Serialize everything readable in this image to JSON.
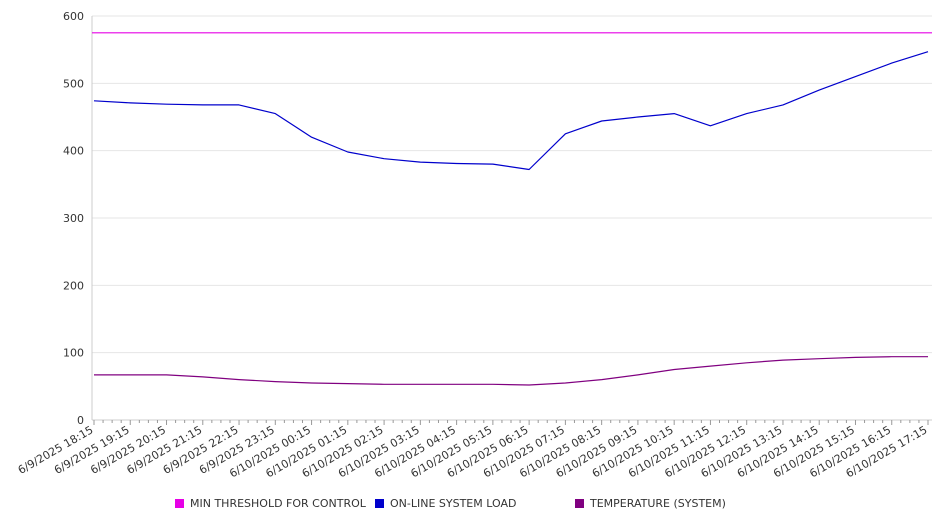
{
  "chart_data": {
    "type": "line",
    "title": "",
    "xlabel": "",
    "ylabel": "",
    "ylim": [
      0,
      600
    ],
    "yticks": [
      0,
      100,
      200,
      300,
      400,
      500,
      600
    ],
    "grid": "horizontal",
    "legend_position": "bottom",
    "x": [
      "6/9/2025 18:15",
      "6/9/2025 19:15",
      "6/9/2025 20:15",
      "6/9/2025 21:15",
      "6/9/2025 22:15",
      "6/9/2025 23:15",
      "6/10/2025 00:15",
      "6/10/2025 01:15",
      "6/10/2025 02:15",
      "6/10/2025 03:15",
      "6/10/2025 04:15",
      "6/10/2025 05:15",
      "6/10/2025 06:15",
      "6/10/2025 07:15",
      "6/10/2025 08:15",
      "6/10/2025 09:15",
      "6/10/2025 10:15",
      "6/10/2025 11:15",
      "6/10/2025 12:15",
      "6/10/2025 13:15",
      "6/10/2025 14:15",
      "6/10/2025 15:15",
      "6/10/2025 16:15",
      "6/10/2025 17:15"
    ],
    "series": [
      {
        "name": "MIN THRESHOLD FOR CONTROL",
        "color": "#e600e6",
        "values": [
          575,
          575,
          575,
          575,
          575,
          575,
          575,
          575,
          575,
          575,
          575,
          575,
          575,
          575,
          575,
          575,
          575,
          575,
          575,
          575,
          575,
          575,
          575,
          575
        ]
      },
      {
        "name": "ON-LINE SYSTEM LOAD",
        "color": "#0000cc",
        "values": [
          474,
          471,
          469,
          468,
          468,
          455,
          420,
          398,
          388,
          383,
          381,
          380,
          372,
          425,
          444,
          450,
          455,
          437,
          455,
          468,
          490,
          510,
          530,
          547
        ]
      },
      {
        "name": "TEMPERATURE (SYSTEM)",
        "color": "#800080",
        "values": [
          67,
          67,
          67,
          64,
          60,
          57,
          55,
          54,
          53,
          53,
          53,
          53,
          52,
          55,
          60,
          67,
          75,
          80,
          85,
          89,
          91,
          93,
          94,
          94
        ]
      }
    ]
  }
}
